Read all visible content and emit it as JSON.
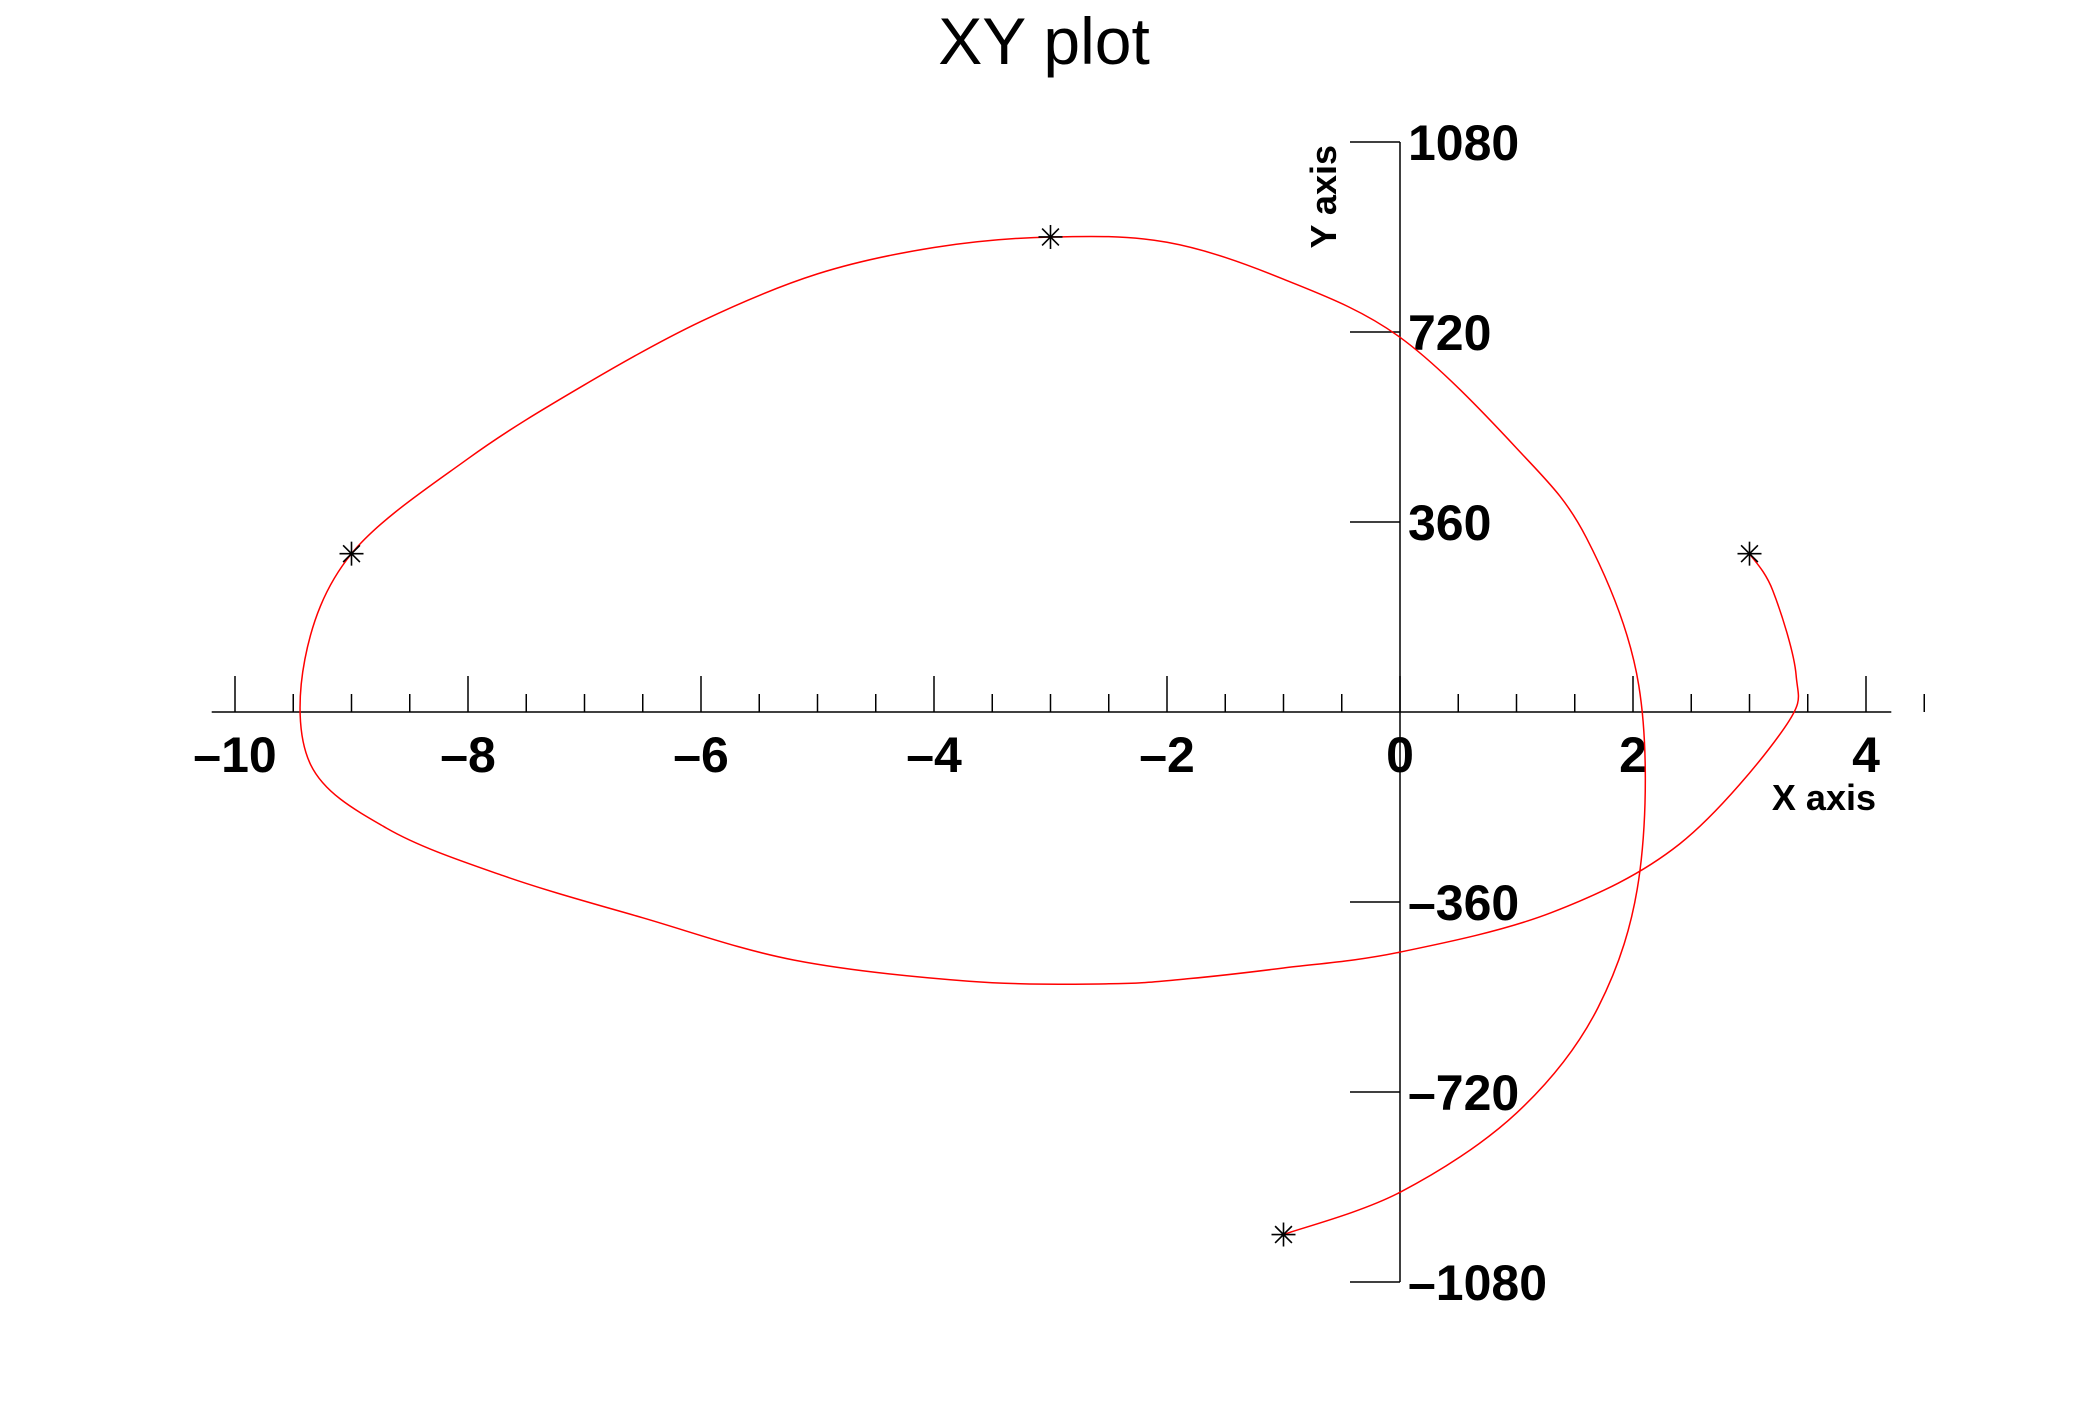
{
  "chart_data": {
    "type": "line",
    "title": "XY plot",
    "xlabel": "X axis",
    "ylabel": "Y axis",
    "xlim": [
      -10.2,
      4.2
    ],
    "ylim": [
      -1080,
      1080
    ],
    "x_ticks": [
      {
        "value": -10,
        "label": "–10"
      },
      {
        "value": -8,
        "label": "–8"
      },
      {
        "value": -6,
        "label": "–6"
      },
      {
        "value": -4,
        "label": "–4"
      },
      {
        "value": -2,
        "label": "–2"
      },
      {
        "value": 0,
        "label": "0"
      },
      {
        "value": 2,
        "label": "2"
      },
      {
        "value": 4,
        "label": "4"
      }
    ],
    "y_ticks": [
      {
        "value": 1080,
        "label": "1080"
      },
      {
        "value": 720,
        "label": "720"
      },
      {
        "value": 360,
        "label": "360"
      },
      {
        "value": -360,
        "label": "–360"
      },
      {
        "value": -720,
        "label": "–720"
      },
      {
        "value": -1080,
        "label": "–1080"
      }
    ],
    "grid": false,
    "legend": "none",
    "series": [
      {
        "markers": "asterisk",
        "color": "#ff0000",
        "marker_color": "#000000",
        "points": [
          {
            "x": -1,
            "y": -990
          },
          {
            "x": 3,
            "y": 300
          },
          {
            "x": -9,
            "y": 300
          },
          {
            "x": -3,
            "y": 900
          }
        ],
        "curve": [
          {
            "x": -1,
            "y": -990
          },
          {
            "x": 0,
            "y": -910
          },
          {
            "x": 1,
            "y": -760
          },
          {
            "x": 1.7,
            "y": -560
          },
          {
            "x": 2.06,
            "y": -300
          },
          {
            "x": 2.05,
            "y": 50
          },
          {
            "x": 1.6,
            "y": 330
          },
          {
            "x": 1,
            "y": 500
          },
          {
            "x": 0,
            "y": 710
          },
          {
            "x": -1,
            "y": 820
          },
          {
            "x": -2,
            "y": 890
          },
          {
            "x": -3,
            "y": 900
          },
          {
            "x": -4,
            "y": 880
          },
          {
            "x": -5,
            "y": 830
          },
          {
            "x": -6,
            "y": 740
          },
          {
            "x": -7,
            "y": 620
          },
          {
            "x": -8,
            "y": 480
          },
          {
            "x": -9,
            "y": 300
          },
          {
            "x": -9.4,
            "y": 100
          },
          {
            "x": -9.35,
            "y": -100
          },
          {
            "x": -8.7,
            "y": -220
          },
          {
            "x": -7.7,
            "y": -310
          },
          {
            "x": -6.5,
            "y": -390
          },
          {
            "x": -5.2,
            "y": -470
          },
          {
            "x": -3.7,
            "y": -510
          },
          {
            "x": -2.5,
            "y": -515
          },
          {
            "x": -1.8,
            "y": -505
          },
          {
            "x": -1,
            "y": -485
          },
          {
            "x": 0,
            "y": -455
          },
          {
            "x": 1.3,
            "y": -380
          },
          {
            "x": 2.4,
            "y": -250
          },
          {
            "x": 3.3,
            "y": -30
          },
          {
            "x": 3.4,
            "y": 70
          },
          {
            "x": 3.2,
            "y": 230
          },
          {
            "x": 3,
            "y": 300
          }
        ]
      }
    ]
  }
}
